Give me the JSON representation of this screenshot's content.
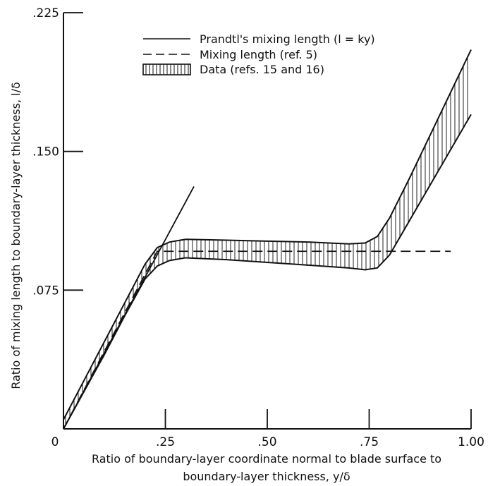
{
  "chart_data": {
    "type": "line",
    "title": "",
    "xlabel_lines": [
      "Ratio of boundary-layer coordinate normal to blade surface to",
      "boundary-layer thickness, y/δ"
    ],
    "ylabel": "Ratio of mixing length to boundary-layer thickness, l/δ",
    "xlim": [
      0,
      1.0
    ],
    "ylim": [
      0,
      0.225
    ],
    "x_ticks": [
      0.25,
      0.5,
      0.75,
      1.0
    ],
    "x_tick_labels": [
      ".25",
      ".50",
      ".75",
      "1.00"
    ],
    "y_ticks": [
      0.075,
      0.15,
      0.225
    ],
    "y_tick_labels": [
      ".075",
      ".150",
      ".225"
    ],
    "origin_label": "0",
    "grid": false,
    "legend_position": "top-center",
    "series": [
      {
        "name": "Prandtl's mixing length (l = ky)",
        "style": "solid",
        "x": [
          0.0,
          0.32
        ],
        "y": [
          0.0,
          0.131
        ]
      },
      {
        "name": "Mixing length (ref. 5)",
        "style": "dashed",
        "x": [
          0.0,
          0.23,
          0.95
        ],
        "y": [
          0.0,
          0.096,
          0.096
        ]
      },
      {
        "name": "Data (refs. 15 and 16)",
        "style": "hatched-band",
        "x": [
          0.0,
          0.05,
          0.1,
          0.15,
          0.2,
          0.23,
          0.26,
          0.3,
          0.4,
          0.5,
          0.6,
          0.7,
          0.74,
          0.77,
          0.8,
          0.85,
          0.9,
          0.95,
          1.0
        ],
        "upper": [
          0.005,
          0.026,
          0.047,
          0.068,
          0.089,
          0.098,
          0.101,
          0.1025,
          0.102,
          0.1015,
          0.101,
          0.1,
          0.1005,
          0.104,
          0.114,
          0.136,
          0.159,
          0.182,
          0.205
        ],
        "lower": [
          0.0,
          0.02,
          0.04,
          0.061,
          0.081,
          0.088,
          0.091,
          0.0925,
          0.0915,
          0.09,
          0.0885,
          0.087,
          0.086,
          0.087,
          0.094,
          0.113,
          0.132,
          0.151,
          0.17
        ]
      }
    ]
  }
}
